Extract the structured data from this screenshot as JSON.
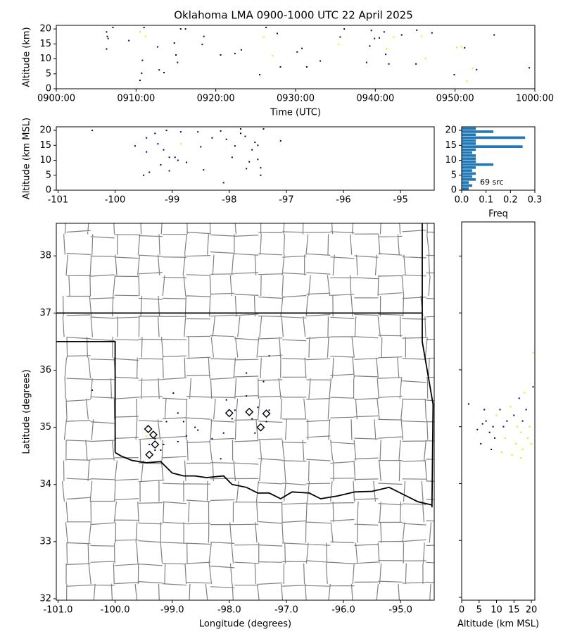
{
  "chart_data": [
    {
      "type": "scatter",
      "title": "Oklahoma LMA 0900-1000 UTC 22 April 2025",
      "xlabel": "Time (UTC)",
      "ylabel": "Altitude (km)",
      "x": [
        6.3,
        6.4,
        6.5,
        6.3,
        7.1,
        9.1,
        10.5,
        11,
        11.2,
        10.8,
        10.7,
        10.5,
        12.7,
        12.9,
        13.5,
        14.8,
        15,
        15.2,
        15.6,
        16.2,
        18.5,
        18.3,
        20.6,
        22.4,
        23.2,
        25.5,
        26,
        26.3,
        27.1,
        27.7,
        28.1,
        30.2,
        30.8,
        31.4,
        33.1,
        35.4,
        35.6,
        36.1,
        38.9,
        39.3,
        39.5,
        39.9,
        40.5,
        41.1,
        41.3,
        41.4,
        41.7,
        42.3,
        43.3,
        45.1,
        45.2,
        45.8,
        46.3,
        47.1,
        49.9,
        50.2,
        50.8,
        51.2,
        51.5,
        52.2,
        52.7,
        54.9,
        59.3
      ],
      "y": [
        19,
        17.5,
        16.8,
        13.3,
        20.5,
        16.1,
        19,
        20.5,
        17.5,
        9.5,
        5.2,
        2.8,
        14,
        6.3,
        5.4,
        15.3,
        11.3,
        8.8,
        20,
        20,
        17.5,
        14.8,
        11.3,
        11.8,
        13,
        4.7,
        17.3,
        20.5,
        11,
        18.5,
        7.3,
        12.3,
        13.5,
        7.3,
        9.3,
        14.8,
        17.3,
        20,
        8.8,
        14.3,
        19.5,
        16.8,
        17,
        19,
        11.5,
        13.4,
        8.3,
        17.3,
        18,
        8.3,
        19.6,
        17.5,
        10.1,
        18.7,
        4.7,
        13.8,
        14,
        13.7,
        2.5,
        6.8,
        6.4,
        18,
        7
      ],
      "colors": [
        "#00006b",
        "#00006b",
        "#00006b",
        "#00006b",
        "#00006b",
        "#00006b",
        "#e8e800",
        "#00006b",
        "#e8e800",
        "#00006b",
        "#00006b",
        "#00006b",
        "#00006b",
        "#00006b",
        "#00006b",
        "#00006b",
        "#00006b",
        "#00006b",
        "#00006b",
        "#00006b",
        "#00006b",
        "#00006b",
        "#00006b",
        "#00006b",
        "#00006b",
        "#00006b",
        "#e8e800",
        "#00006b",
        "#e8e800",
        "#00006b",
        "#00006b",
        "#00006b",
        "#00006b",
        "#00006b",
        "#00006b",
        "#e8e800",
        "#00006b",
        "#00006b",
        "#00006b",
        "#00006b",
        "#00006b",
        "#00006b",
        "#00006b",
        "#00006b",
        "#00006b",
        "#e8e800",
        "#00006b",
        "#e8e800",
        "#00006b",
        "#00006b",
        "#00006b",
        "#e8e800",
        "#e8e800",
        "#00006b",
        "#00006b",
        "#e8e800",
        "#e8e800",
        "#00006b",
        "#e8e800",
        "#e8e800",
        "#00006b",
        "#00006b",
        "#00006b"
      ],
      "xlim": [
        0,
        60
      ],
      "ylim": [
        0,
        21.2
      ],
      "xticks": [
        {
          "value": 0,
          "label": "0900:00"
        },
        {
          "value": 10,
          "label": "0910:00"
        },
        {
          "value": 20,
          "label": "0920:00"
        },
        {
          "value": 30,
          "label": "0930:00"
        },
        {
          "value": 40,
          "label": "0940:00"
        },
        {
          "value": 50,
          "label": "0950:00"
        },
        {
          "value": 60,
          "label": "1000:00"
        }
      ],
      "yticks": [
        0,
        5,
        10,
        15,
        20
      ]
    },
    {
      "type": "scatter",
      "ylabel": "Altitude (km MSL)",
      "x": [
        -100.4,
        -99.65,
        -99.5,
        -99.45,
        -99.45,
        -99.4,
        -99.3,
        -99.2,
        -99.25,
        -99.1,
        -99.05,
        -99.15,
        -99.05,
        -98.95,
        -98.85,
        -98.85,
        -98.75,
        -98.55,
        -98.5,
        -98.45,
        -98.15,
        -98.1,
        -98.05,
        -97.95,
        -97.9,
        -97.8,
        -97.72,
        -97.65,
        -97.6,
        -97.55,
        -97.5,
        -97.45,
        -97.4,
        -97.5,
        -97.7,
        -97.1,
        -97.45,
        -97.8,
        -98.3,
        -98.9
      ],
      "y": [
        20,
        14.8,
        5,
        17.5,
        12.8,
        6,
        19,
        8.5,
        15.5,
        20,
        11,
        13.5,
        6.5,
        11,
        15.5,
        19.5,
        9.3,
        19.5,
        14.5,
        6.8,
        19.8,
        2.5,
        17,
        11,
        14.8,
        20.5,
        18,
        9.5,
        13.5,
        16,
        10.3,
        7.5,
        20.5,
        15,
        7.2,
        16.5,
        5,
        19,
        17.5,
        10
      ],
      "colors": [
        "#00006b",
        "#00006b",
        "#00006b",
        "#00006b",
        "#00006b",
        "#00006b",
        "#00006b",
        "#00006b",
        "#00006b",
        "#00006b",
        "#00006b",
        "#00006b",
        "#00006b",
        "#00006b",
        "#e8e800",
        "#00006b",
        "#00006b",
        "#00006b",
        "#00006b",
        "#00006b",
        "#00006b",
        "#00006b",
        "#00006b",
        "#00006b",
        "#00006b",
        "#00006b",
        "#00006b",
        "#00006b",
        "#00006b",
        "#00006b",
        "#00006b",
        "#00006b",
        "#00006b",
        "#00006b",
        "#00006b",
        "#00006b",
        "#00006b",
        "#00006b",
        "#00006b",
        "#00006b"
      ],
      "xlim": [
        -101.03,
        -94.41
      ],
      "ylim": [
        0,
        21.2
      ],
      "xticks": [
        -101,
        -100,
        -99,
        -98,
        -97,
        -96,
        -95
      ],
      "yticks": [
        0,
        5,
        10,
        15,
        20
      ]
    },
    {
      "type": "hbar-histogram",
      "xlabel": "Freq",
      "annotation": "69 src",
      "color": "#1f77b4",
      "bins": [
        0,
        1,
        2,
        3,
        4,
        5,
        6,
        7,
        8,
        9,
        10,
        11,
        12,
        13,
        14,
        15,
        16,
        17,
        18,
        19,
        20,
        21
      ],
      "values": [
        0.029,
        0.043,
        0.029,
        0.058,
        0.043,
        0.058,
        0.043,
        0.058,
        0.13,
        0.058,
        0.058,
        0.058,
        0.043,
        0.058,
        0.25,
        0.058,
        0.058,
        0.26,
        0.058,
        0.13,
        0.058
      ],
      "xlim": [
        0,
        0.3
      ],
      "ylim": [
        0,
        21.2
      ],
      "xticks": [
        {
          "value": 0,
          "label": "0.0"
        },
        0.1,
        0.2,
        0.3
      ],
      "yticks": [
        0,
        5,
        10,
        15,
        20
      ]
    },
    {
      "type": "map",
      "xlabel": "Longitude (degrees)",
      "ylabel": "Latitude (degrees)",
      "x": [
        -100.4,
        -98.98,
        -99.1,
        -98.9,
        -98.8,
        -98.6,
        -98.55,
        -98.75,
        -98.9,
        -99.3,
        -99.4,
        -99.3,
        -99.2,
        -99.35,
        -99.45,
        -99.15,
        -98.3,
        -98.1,
        -97.95,
        -97.9,
        -98.05,
        -97.7,
        -97.5,
        -97.6,
        -97.45,
        -97.3,
        -97.35,
        -97.55,
        -98.15,
        -97.4,
        -97.7,
        -97.3
      ],
      "y": [
        35.65,
        35.6,
        35.1,
        35.25,
        35.1,
        35.0,
        34.95,
        34.85,
        34.75,
        34.8,
        34.7,
        34.6,
        34.6,
        34.9,
        34.85,
        34.7,
        34.8,
        34.9,
        35.15,
        35.3,
        35.48,
        35.55,
        35.35,
        35.15,
        35.05,
        35.3,
        35.1,
        34.9,
        34.45,
        35.8,
        35.95,
        36.25
      ],
      "colors": [
        "#00006b",
        "#00006b",
        "#00006b",
        "#00006b",
        "#00006b",
        "#00006b",
        "#00006b",
        "#00006b",
        "#00006b",
        "#00006b",
        "#00006b",
        "#00006b",
        "#00006b",
        "#00006b",
        "#e8e800",
        "#00006b",
        "#00006b",
        "#00006b",
        "#00006b",
        "#00006b",
        "#00006b",
        "#00006b",
        "#00006b",
        "#00006b",
        "#00006b",
        "#00006b",
        "#00006b",
        "#00006b",
        "#00006b",
        "#00006b",
        "#00006b",
        "#00006b"
      ],
      "stations": {
        "x": [
          -99.42,
          -99.33,
          -99.3,
          -99.4,
          -98.0,
          -97.65,
          -97.45,
          -97.35
        ],
        "y": [
          34.97,
          34.87,
          34.7,
          34.52,
          35.25,
          35.27,
          35.0,
          35.24
        ]
      },
      "xlim": [
        -101.03,
        -94.41
      ],
      "ylim": [
        31.975,
        38.57
      ],
      "xticks": [
        {
          "value": -101,
          "label": "-101.0"
        },
        {
          "value": -100,
          "label": "-100.0"
        },
        {
          "value": -99,
          "label": "-99.0"
        },
        {
          "value": -98,
          "label": "-98.0"
        },
        {
          "value": -97,
          "label": "-97.0"
        },
        {
          "value": -96,
          "label": "-96.0"
        },
        {
          "value": -95,
          "label": "-95.0"
        }
      ],
      "yticks": [
        32,
        33,
        34,
        35,
        36,
        37,
        38
      ]
    },
    {
      "type": "scatter",
      "xlabel": "Altitude (km MSL)",
      "x": [
        2,
        4.5,
        5.5,
        6,
        6.5,
        7,
        8,
        9,
        9.5,
        10,
        11,
        12,
        12.5,
        13,
        14,
        15,
        15.5,
        16,
        16.5,
        17,
        17.5,
        17.5,
        18,
        18.5,
        19,
        19.5,
        20,
        20.5,
        20.5,
        8.5,
        11.5,
        14.5,
        17
      ],
      "y": [
        35.4,
        34.95,
        34.7,
        35.05,
        35.3,
        35.1,
        34.9,
        35.0,
        34.8,
        35.2,
        35.3,
        35.0,
        34.8,
        35.1,
        35.35,
        35.2,
        34.7,
        35.0,
        35.5,
        34.9,
        35.1,
        34.6,
        35.6,
        35.3,
        34.8,
        35.0,
        34.7,
        35.7,
        36.3,
        34.6,
        34.55,
        34.5,
        34.45
      ],
      "colors": [
        "#00006b",
        "#00006b",
        "#00006b",
        "#00006b",
        "#00006b",
        "#00006b",
        "#00006b",
        "#00006b",
        "#00006b",
        "#e8e800",
        "#00006b",
        "#00006b",
        "#e8e800",
        "#00006b",
        "#e8e800",
        "#00006b",
        "#e8e800",
        "#e8e800",
        "#00006b",
        "#e8e800",
        "#00006b",
        "#e8e800",
        "#e8e800",
        "#00006b",
        "#e8e800",
        "#e8e800",
        "#e8e800",
        "#00006b",
        "#e8e800",
        "#00006b",
        "#e8e800",
        "#e8e800",
        "#e8e800"
      ],
      "xlim": [
        0,
        21
      ],
      "ylim": [
        31.95,
        38.6
      ],
      "xticks": [
        0,
        5,
        10,
        15,
        20
      ],
      "yticks": [
        32,
        33,
        34,
        35,
        36,
        37,
        38
      ],
      "ytick_labels": false
    }
  ]
}
